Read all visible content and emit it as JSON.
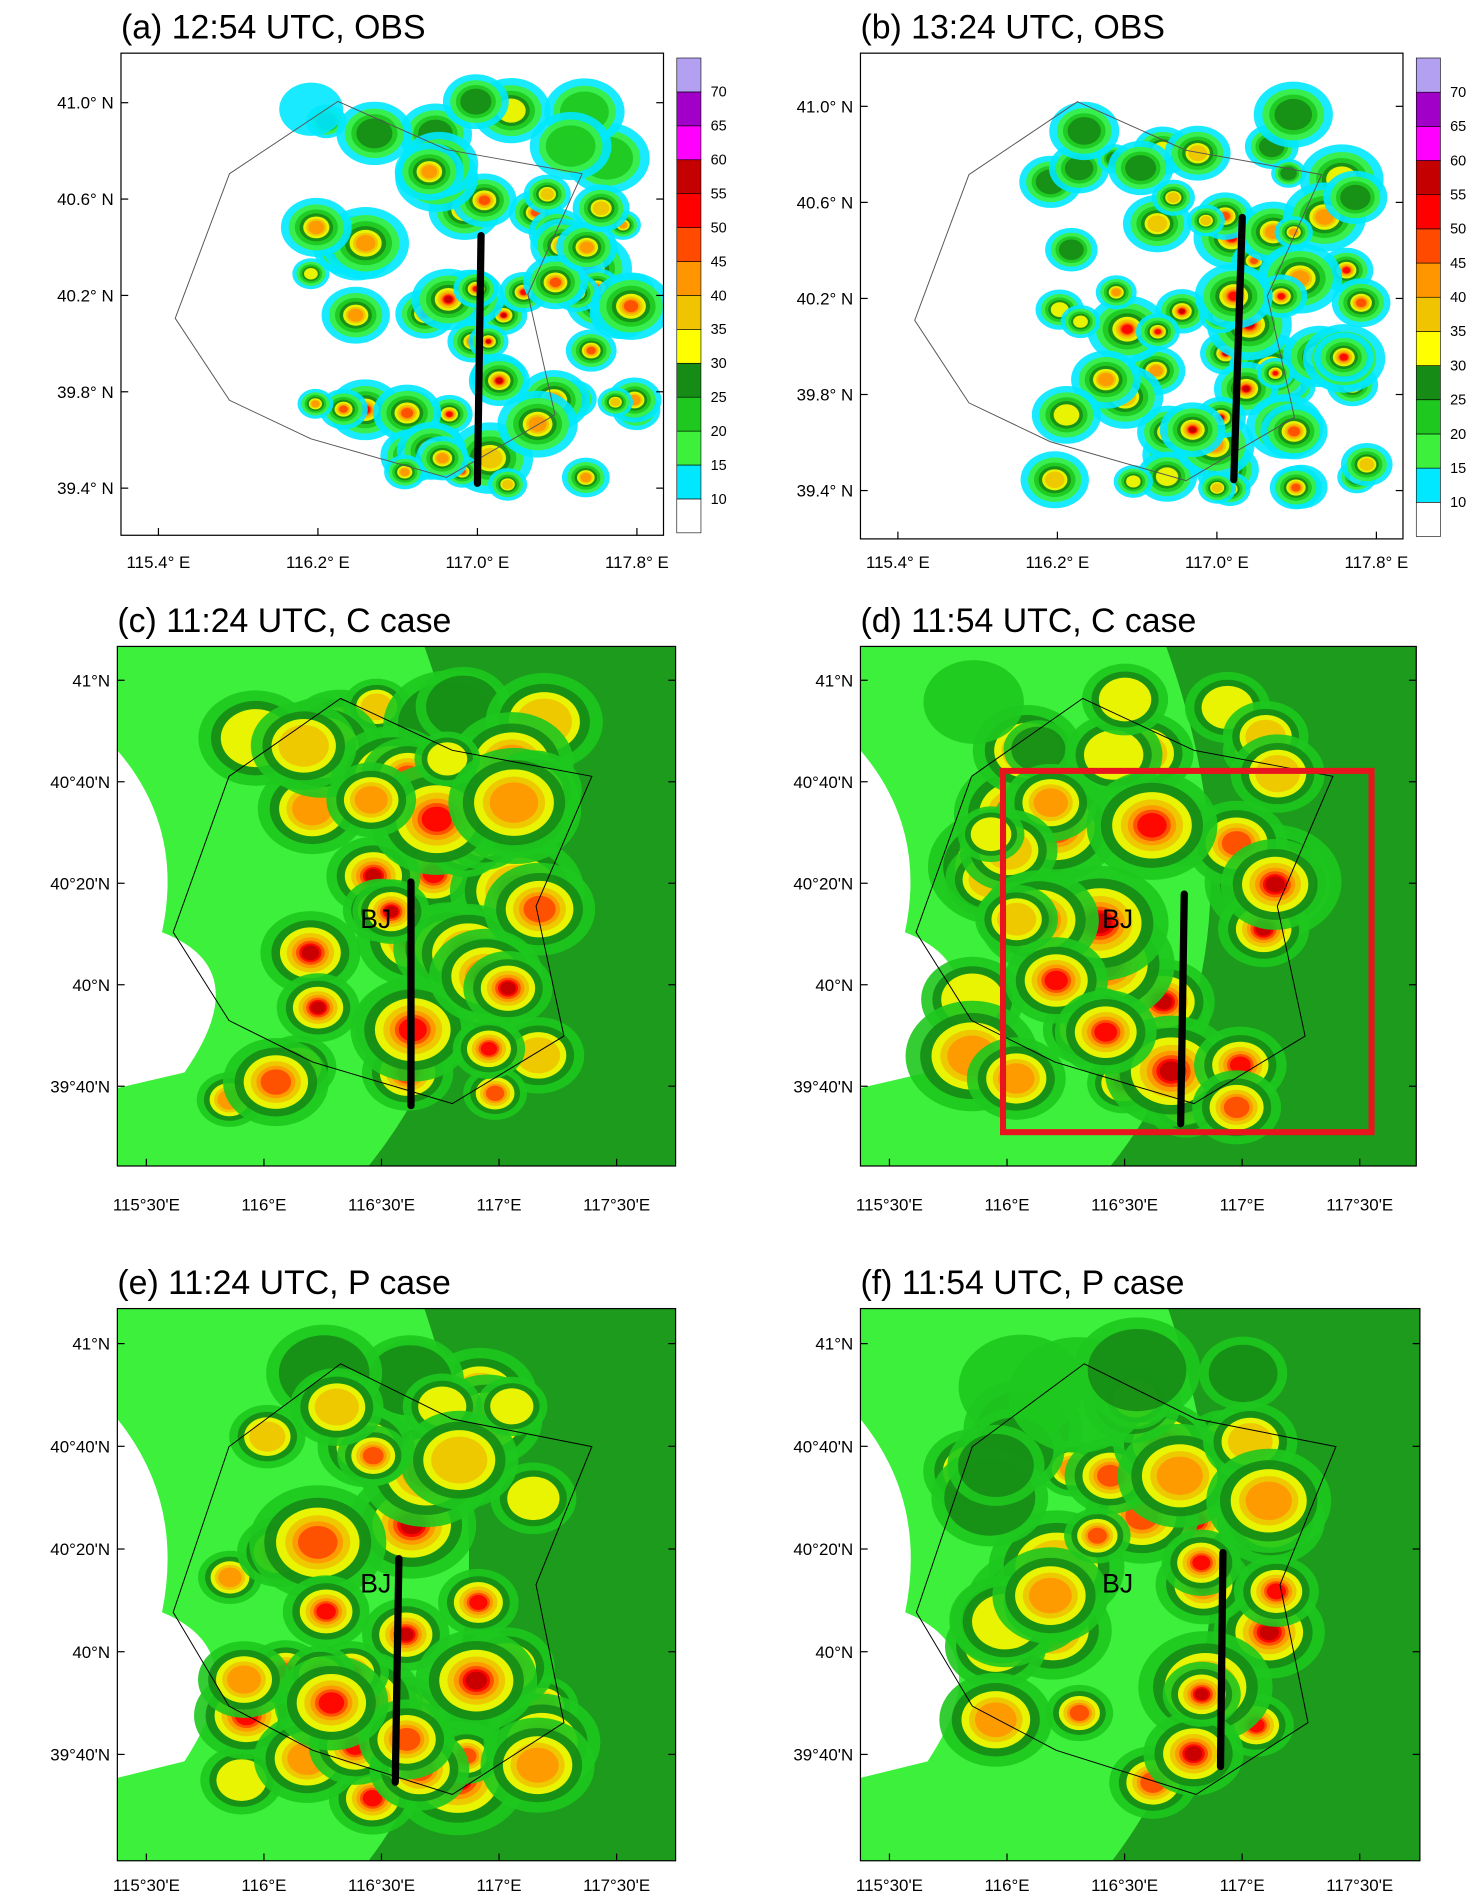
{
  "panels": [
    {
      "title": "(a) 12:54 UTC, OBS",
      "kind": "obs",
      "yticks": [
        "41.0° N",
        "40.6° N",
        "40.2° N",
        "39.8° N",
        "39.4° N"
      ],
      "xticks": [
        "115.4° E",
        "116.2° E",
        "117.0° E",
        "117.8° E"
      ]
    },
    {
      "title": "(b) 13:24 UTC, OBS",
      "kind": "obs",
      "yticks": [
        "41.0° N",
        "40.6° N",
        "40.2° N",
        "39.8° N",
        "39.4° N"
      ],
      "xticks": [
        "115.4° E",
        "116.2° E",
        "117.0° E",
        "117.8° E"
      ]
    },
    {
      "title": "(c) 11:24 UTC, C case",
      "kind": "model",
      "label": "BJ",
      "yticks": [
        "41°N",
        "40°40'N",
        "40°20'N",
        "40°N",
        "39°40'N"
      ],
      "xticks": [
        "115°30'E",
        "116°E",
        "116°30'E",
        "117°E",
        "117°30'E"
      ]
    },
    {
      "title": "(d) 11:54 UTC, C case",
      "kind": "model",
      "label": "BJ",
      "yticks": [
        "41°N",
        "40°40'N",
        "40°20'N",
        "40°N",
        "39°40'N"
      ],
      "xticks": [
        "115°30'E",
        "116°E",
        "116°30'E",
        "117°E",
        "117°30'E"
      ]
    },
    {
      "title": "(e) 11:24 UTC, P case",
      "kind": "model",
      "label": "BJ",
      "yticks": [
        "41°N",
        "40°40'N",
        "40°20'N",
        "40°N",
        "39°40'N"
      ],
      "xticks": [
        "115°30'E",
        "116°E",
        "116°30'E",
        "117°E",
        "117°30'E"
      ]
    },
    {
      "title": "(f) 11:54 UTC, P case",
      "kind": "model",
      "label": "BJ",
      "yticks": [
        "41°N",
        "40°40'N",
        "40°20'N",
        "40°N",
        "39°40'N"
      ],
      "xticks": [
        "115°30'E",
        "116°E",
        "116°30'E",
        "117°E",
        "117°30'E"
      ]
    }
  ],
  "colorbar": {
    "levels": [
      10,
      15,
      20,
      25,
      30,
      35,
      40,
      45,
      50,
      55,
      60,
      65,
      70
    ],
    "colors": [
      "#ffffff",
      "#00e8ff",
      "#3cf03c",
      "#1ec81e",
      "#168c16",
      "#ffff00",
      "#f0c400",
      "#ff9600",
      "#ff4a00",
      "#ff0000",
      "#c40000",
      "#ff00ff",
      "#a000c8",
      "#b4a0f0"
    ]
  }
}
